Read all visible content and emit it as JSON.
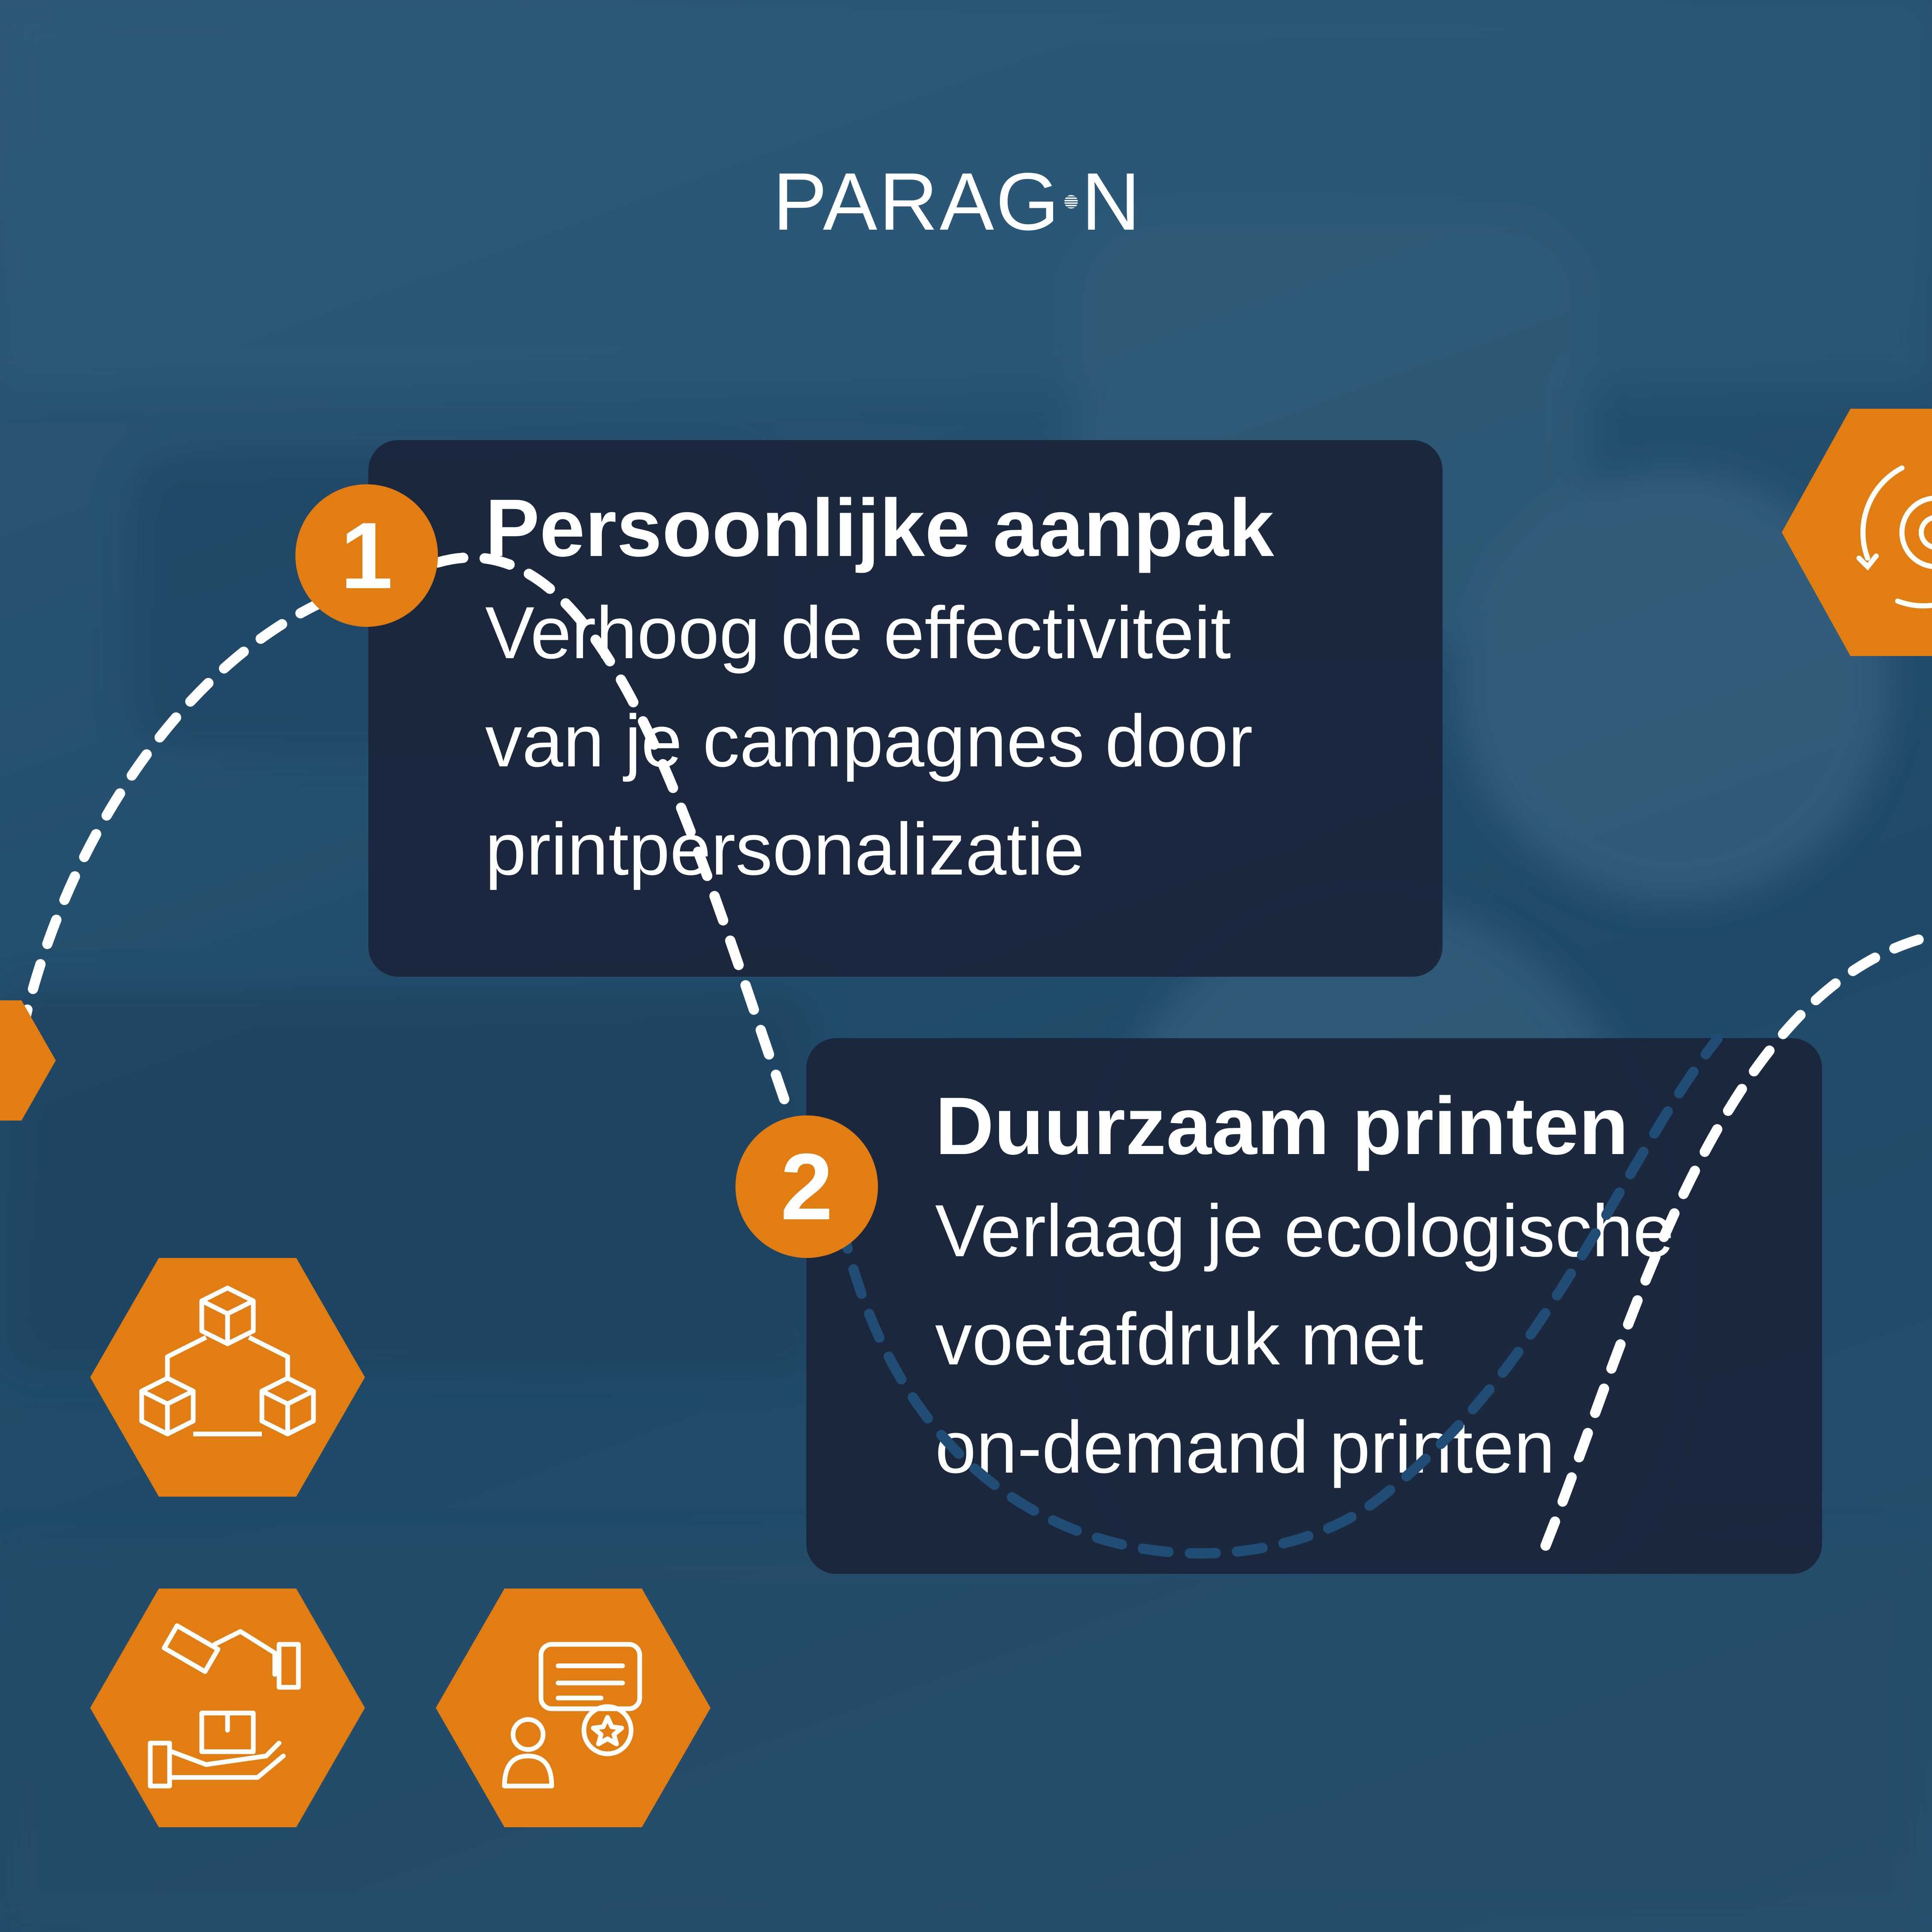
{
  "brand": {
    "logo_text_before": "PARAG",
    "logo_text_after": "N"
  },
  "steps": [
    {
      "number": "1",
      "title": "Persoonlijke aanpak",
      "description_lines": [
        "Verhoog de effectiviteit",
        "van je campagnes door",
        "printpersonalizatie"
      ]
    },
    {
      "number": "2",
      "title": "Duurzaam printen",
      "description_lines": [
        "Verlaag je ecologische",
        "voetafdruk met",
        "on-demand printen"
      ]
    }
  ],
  "icons": [
    "gear-cycle-icon",
    "hexagon-partial-icon",
    "connected-boxes-icon",
    "money-hand-package-icon",
    "chat-review-user-icon"
  ],
  "colors": {
    "accent_orange": "#e27d12",
    "card_navy": "#1b253a",
    "background_blue": "#24506f",
    "text_white": "#ffffff"
  }
}
